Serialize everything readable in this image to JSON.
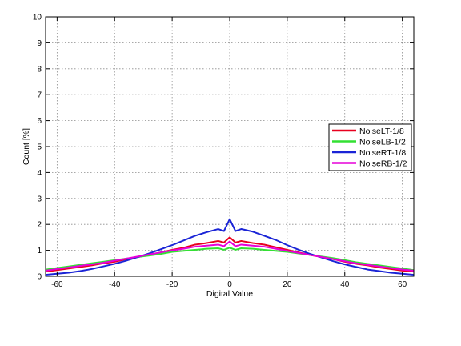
{
  "chart_data": {
    "type": "line",
    "title": "",
    "xlabel": "Digital Value",
    "ylabel": "Count [%]",
    "xlim": [
      -64,
      64
    ],
    "ylim": [
      0,
      10
    ],
    "x_ticks": [
      -60,
      -40,
      -20,
      0,
      20,
      40,
      60
    ],
    "y_ticks": [
      0,
      1,
      2,
      3,
      4,
      5,
      6,
      7,
      8,
      9,
      10
    ],
    "x_tick_labels": [
      "-60",
      "-40",
      "-20",
      "0",
      "20",
      "40",
      "60"
    ],
    "y_tick_labels": [
      "0",
      "1",
      "2",
      "3",
      "4",
      "5",
      "6",
      "7",
      "8",
      "9",
      "10"
    ],
    "grid": true,
    "legend_position": "center-right",
    "x": [
      -64,
      -60,
      -56,
      -52,
      -48,
      -44,
      -40,
      -36,
      -32,
      -28,
      -24,
      -20,
      -16,
      -12,
      -8,
      -4,
      -2,
      0,
      2,
      4,
      8,
      12,
      16,
      20,
      24,
      28,
      32,
      36,
      40,
      44,
      48,
      52,
      56,
      60,
      64
    ],
    "series": [
      {
        "name": "NoiseLT-1/8",
        "color": "#e8001f",
        "values": [
          0.18,
          0.24,
          0.3,
          0.36,
          0.42,
          0.5,
          0.56,
          0.66,
          0.74,
          0.82,
          0.92,
          1.02,
          1.1,
          1.22,
          1.28,
          1.36,
          1.3,
          1.5,
          1.3,
          1.36,
          1.28,
          1.22,
          1.12,
          1.02,
          0.92,
          0.82,
          0.74,
          0.66,
          0.56,
          0.48,
          0.42,
          0.34,
          0.28,
          0.22,
          0.18
        ]
      },
      {
        "name": "NoiseLB-1/2",
        "color": "#33e033",
        "values": [
          0.26,
          0.32,
          0.38,
          0.44,
          0.5,
          0.56,
          0.62,
          0.68,
          0.74,
          0.8,
          0.86,
          0.94,
          0.98,
          1.02,
          1.06,
          1.08,
          1.02,
          1.1,
          1.02,
          1.08,
          1.06,
          1.02,
          0.98,
          0.94,
          0.88,
          0.82,
          0.76,
          0.7,
          0.62,
          0.54,
          0.48,
          0.42,
          0.36,
          0.3,
          0.24
        ]
      },
      {
        "name": "NoiseRT-1/8",
        "color": "#1a24d6",
        "values": [
          0.06,
          0.1,
          0.14,
          0.2,
          0.28,
          0.38,
          0.48,
          0.6,
          0.74,
          0.88,
          1.04,
          1.2,
          1.38,
          1.56,
          1.7,
          1.82,
          1.74,
          2.2,
          1.74,
          1.82,
          1.72,
          1.56,
          1.4,
          1.2,
          1.02,
          0.86,
          0.72,
          0.58,
          0.46,
          0.36,
          0.26,
          0.2,
          0.14,
          0.1,
          0.06
        ]
      },
      {
        "name": "NoiseRB-1/2",
        "color": "#e600d9",
        "values": [
          0.22,
          0.28,
          0.34,
          0.4,
          0.46,
          0.52,
          0.6,
          0.68,
          0.76,
          0.84,
          0.92,
          1.0,
          1.06,
          1.14,
          1.18,
          1.22,
          1.16,
          1.34,
          1.16,
          1.22,
          1.18,
          1.14,
          1.06,
          0.98,
          0.9,
          0.82,
          0.74,
          0.66,
          0.58,
          0.5,
          0.44,
          0.38,
          0.32,
          0.26,
          0.22
        ]
      }
    ]
  }
}
